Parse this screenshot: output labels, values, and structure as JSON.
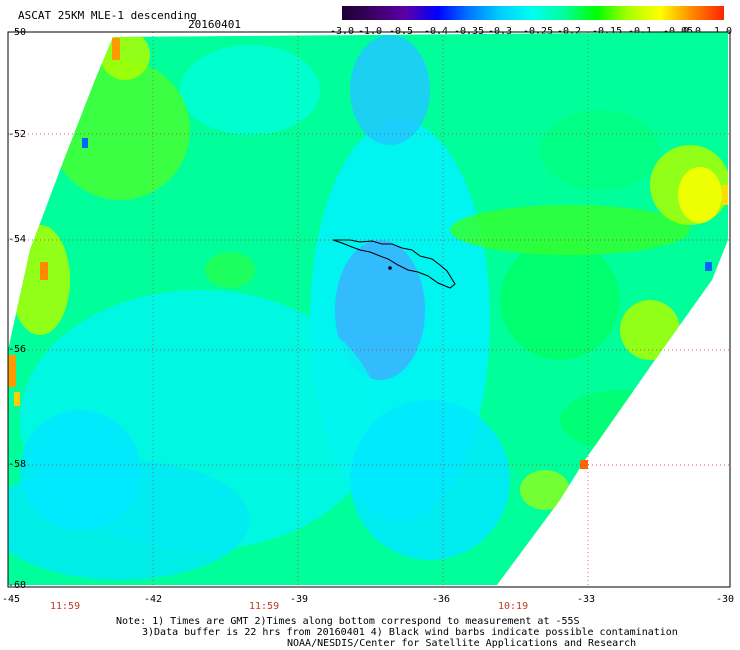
{
  "title": "ASCAT 25KM MLE-1 descending",
  "date": "20160401",
  "colorbar": {
    "labels": [
      "-3.0",
      "-1.0",
      "-0.5",
      "-0.4",
      "-0.35",
      "-0.3",
      "-0.25",
      "-0.2",
      "-0.15",
      "-0.1",
      "-0.05",
      "0.0",
      "1.0"
    ],
    "colors": [
      "#1a0033",
      "#3d0066",
      "#5a00a8",
      "#0000ff",
      "#0077ff",
      "#00d0ff",
      "#00ffee",
      "#00ff99",
      "#00ff00",
      "#aaff00",
      "#ffff00",
      "#ff8800",
      "#ff2200"
    ]
  },
  "map": {
    "lat_labels": [
      "-50",
      "-52",
      "-54",
      "-56",
      "-58",
      "-60"
    ],
    "lon_labels": [
      "-45",
      "-42",
      "-39",
      "-36",
      "-33",
      "-30"
    ],
    "times": [
      "11:59",
      "11:59",
      "10:19"
    ],
    "island": "South Georgia"
  },
  "notes": {
    "line1": "Note: 1) Times are GMT 2)Times along bottom correspond to measurement at -55S",
    "line2": "3)Data buffer is 22 hrs from 20160401 4) Black wind barbs indicate possible contamination",
    "line3": "NOAA/NESDIS/Center for Satellite Applications and Research"
  }
}
